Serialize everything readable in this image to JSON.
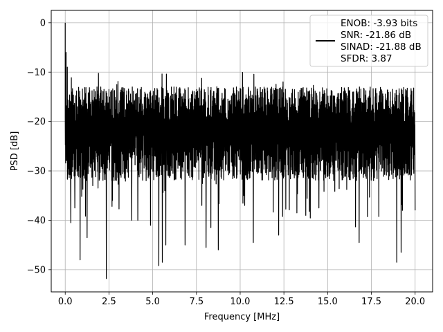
{
  "chart_data": {
    "type": "line",
    "xlabel": "Frequency [MHz]",
    "ylabel": "PSD [dB]",
    "xlim": [
      -0.8,
      21.0
    ],
    "ylim": [
      -54.5,
      2.5
    ],
    "x_ticks": [
      0.0,
      2.5,
      5.0,
      7.5,
      10.0,
      12.5,
      15.0,
      17.5,
      20.0
    ],
    "x_tick_labels": [
      "0.0",
      "2.5",
      "5.0",
      "7.5",
      "10.0",
      "12.5",
      "15.0",
      "17.5",
      "20.0"
    ],
    "y_ticks": [
      0,
      -10,
      -20,
      -30,
      -40,
      -50
    ],
    "y_tick_labels": [
      "0",
      "−10",
      "−20",
      "−30",
      "−40",
      "−50"
    ],
    "grid": true,
    "legend_position": "top-right",
    "series_color": "#000000",
    "series": [
      {
        "name": "ENOB: -3.93 bits\nSNR: -21.86 dB\nSINAD: -21.88 dB\nSFDR: 3.87",
        "x_range": [
          0.0,
          20.0
        ],
        "envelope_upper_approx": -10,
        "envelope_lower_approx": -30,
        "center_approx": -20,
        "peak_points": [
          [
            0.0,
            0.0
          ],
          [
            0.05,
            -6.0
          ],
          [
            0.12,
            -9.0
          ]
        ],
        "deep_minima": [
          [
            0.32,
            -40.5
          ],
          [
            0.55,
            -37.5
          ],
          [
            0.85,
            -48.0
          ],
          [
            1.25,
            -43.5
          ],
          [
            2.35,
            -51.8
          ],
          [
            2.7,
            -36.0
          ],
          [
            3.8,
            -40.0
          ],
          [
            4.15,
            -40.0
          ],
          [
            5.35,
            -49.2
          ],
          [
            5.55,
            -48.5
          ],
          [
            5.75,
            -45.0
          ],
          [
            6.85,
            -45.0
          ],
          [
            8.05,
            -45.5
          ],
          [
            8.75,
            -46.0
          ],
          [
            10.75,
            -44.5
          ],
          [
            12.2,
            -43.0
          ],
          [
            13.75,
            -39.0
          ],
          [
            14.5,
            -37.5
          ],
          [
            16.8,
            -44.5
          ],
          [
            18.95,
            -48.5
          ],
          [
            19.2,
            -46.5
          ],
          [
            20.0,
            -38.0
          ]
        ]
      }
    ]
  }
}
